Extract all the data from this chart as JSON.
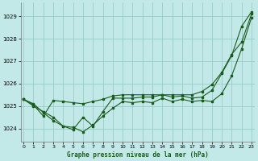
{
  "title": "Graphe pression niveau de la mer (hPa)",
  "x_ticks": [
    0,
    1,
    2,
    3,
    4,
    5,
    6,
    7,
    8,
    9,
    10,
    11,
    12,
    13,
    14,
    15,
    16,
    17,
    18,
    19,
    20,
    21,
    22,
    23
  ],
  "ylim": [
    1023.4,
    1029.6
  ],
  "yticks": [
    1024,
    1025,
    1026,
    1027,
    1028,
    1029
  ],
  "xlim": [
    -0.3,
    23.3
  ],
  "bg_color": "#c2e8e8",
  "grid_color": "#99cccc",
  "line_color": "#1a5c1a",
  "series1_zigzag": [
    1025.3,
    1025.1,
    1024.7,
    1024.35,
    1024.1,
    1024.05,
    1023.85,
    1024.15,
    1024.55,
    1024.9,
    1025.2,
    1025.15,
    1025.2,
    1025.15,
    1025.35,
    1025.2,
    1025.3,
    1025.2,
    1025.25,
    1025.2,
    1025.55,
    1026.35,
    1027.55,
    1028.95
  ],
  "series2_steep": [
    1025.3,
    1025.05,
    1024.55,
    1025.25,
    1025.2,
    1025.15,
    1025.1,
    1025.2,
    1025.3,
    1025.45,
    1025.5,
    1025.5,
    1025.5,
    1025.5,
    1025.5,
    1025.5,
    1025.5,
    1025.5,
    1025.65,
    1025.95,
    1026.5,
    1027.3,
    1027.85,
    1029.1
  ],
  "series3_moderate": [
    1025.3,
    1025.0,
    1024.75,
    1024.5,
    1024.1,
    1023.95,
    1024.5,
    1024.1,
    1024.75,
    1025.35,
    1025.35,
    1025.35,
    1025.4,
    1025.4,
    1025.5,
    1025.4,
    1025.45,
    1025.35,
    1025.4,
    1025.7,
    1026.45,
    1027.25,
    1028.55,
    1029.2
  ]
}
